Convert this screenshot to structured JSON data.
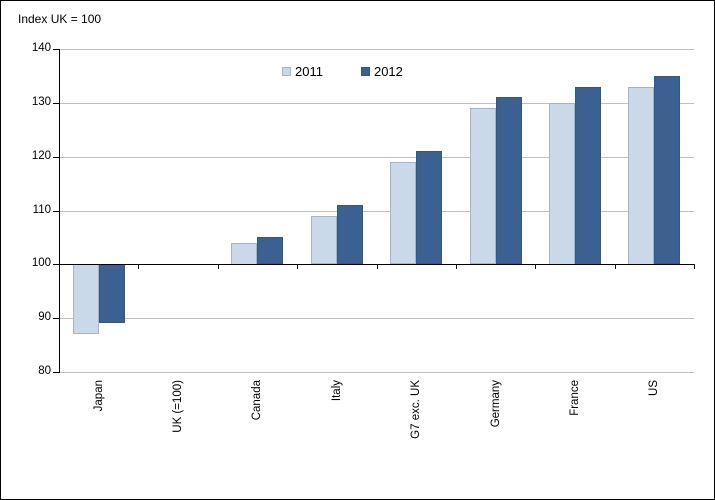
{
  "chart_data": {
    "type": "bar",
    "title": "Index UK = 100",
    "categories": [
      "Japan",
      "UK (=100)",
      "Canada",
      "Italy",
      "G7 exc. UK",
      "Germany",
      "France",
      "US"
    ],
    "series": [
      {
        "name": "2011",
        "color": "#C9D9E9",
        "border_color": "#A8B4BF",
        "values": [
          87,
          100,
          104,
          109,
          119,
          129,
          130,
          133
        ]
      },
      {
        "name": "2012",
        "color": "#3A6191",
        "border_color": "#345880",
        "values": [
          89,
          100,
          105,
          111,
          121,
          131,
          133,
          135
        ]
      }
    ],
    "baseline": 100,
    "ylim": [
      80,
      140
    ],
    "ytick_step": 10,
    "ytick_labels": [
      "80",
      "90",
      "100",
      "110",
      "120",
      "130",
      "140"
    ],
    "grid": true,
    "legend_position": "top-center",
    "colors": {
      "gridline": "#C0C0C0",
      "axis": "#000000",
      "background": "#FFFFFF"
    }
  }
}
